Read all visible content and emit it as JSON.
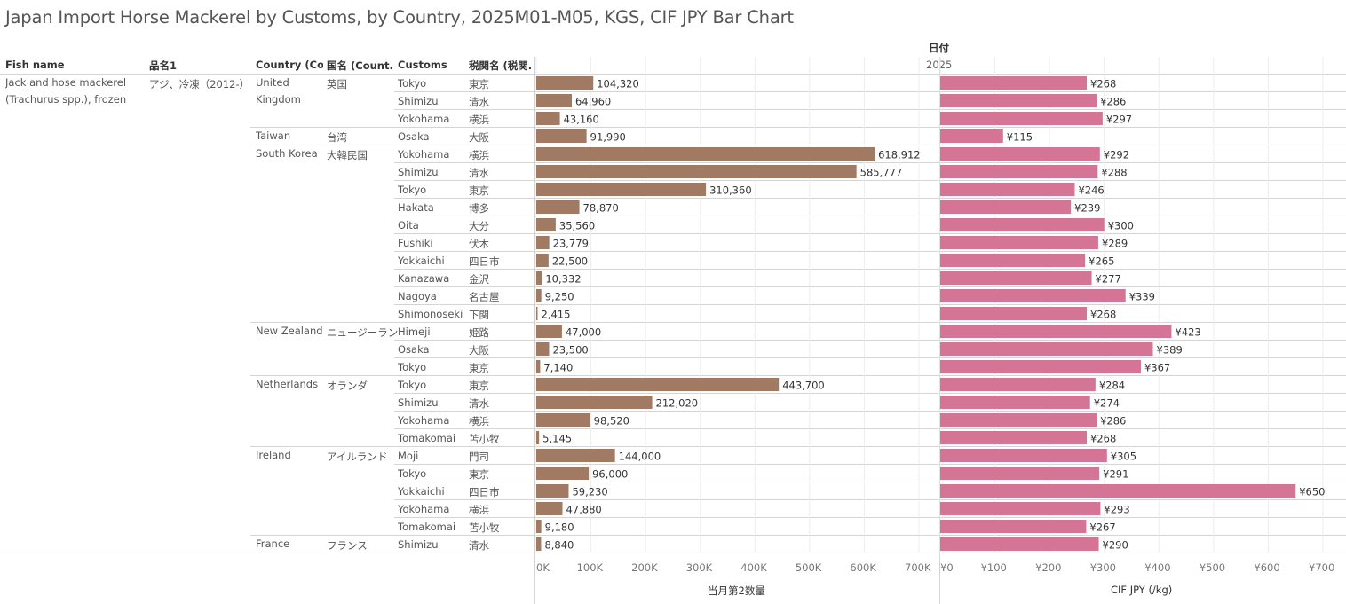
{
  "title": "Japan Import Horse Mackerel by Customs, by Country, 2025M01-M05, KGS, CIF JPY Bar Chart",
  "headers": {
    "fish_name": "Fish name",
    "hinmei": "品名1",
    "country": "Country (Co..",
    "kokumei": "国名 (Count..",
    "customs": "Customs",
    "zeikan": "税関名 (税関..",
    "date": "日付",
    "year": "2025"
  },
  "fish": {
    "name": "Jack and hose mackerel (Trachurus spp.), frozen",
    "hinmei": "アジ、冷凍（2012-）"
  },
  "groups": [
    {
      "country": "United Kingdom",
      "kokumei": "英国",
      "rows": 3
    },
    {
      "country": "Taiwan",
      "kokumei": "台湾",
      "rows": 1
    },
    {
      "country": "South Korea",
      "kokumei": "大韓民国",
      "rows": 10
    },
    {
      "country": "New Zealand",
      "kokumei": "ニュージーランド",
      "rows": 3
    },
    {
      "country": "Netherlands",
      "kokumei": "オランダ",
      "rows": 4
    },
    {
      "country": "Ireland",
      "kokumei": "アイルランド",
      "rows": 5
    },
    {
      "country": "France",
      "kokumei": "フランス",
      "rows": 1
    }
  ],
  "rows": [
    {
      "customs": "Tokyo",
      "zeikan": "東京"
    },
    {
      "customs": "Shimizu",
      "zeikan": "清水"
    },
    {
      "customs": "Yokohama",
      "zeikan": "横浜"
    },
    {
      "customs": "Osaka",
      "zeikan": "大阪"
    },
    {
      "customs": "Yokohama",
      "zeikan": "横浜"
    },
    {
      "customs": "Shimizu",
      "zeikan": "清水"
    },
    {
      "customs": "Tokyo",
      "zeikan": "東京"
    },
    {
      "customs": "Hakata",
      "zeikan": "博多"
    },
    {
      "customs": "Oita",
      "zeikan": "大分"
    },
    {
      "customs": "Fushiki",
      "zeikan": "伏木"
    },
    {
      "customs": "Yokkaichi",
      "zeikan": "四日市"
    },
    {
      "customs": "Kanazawa",
      "zeikan": "金沢"
    },
    {
      "customs": "Nagoya",
      "zeikan": "名古屋"
    },
    {
      "customs": "Shimonoseki",
      "zeikan": "下関"
    },
    {
      "customs": "Himeji",
      "zeikan": "姫路"
    },
    {
      "customs": "Osaka",
      "zeikan": "大阪"
    },
    {
      "customs": "Tokyo",
      "zeikan": "東京"
    },
    {
      "customs": "Tokyo",
      "zeikan": "東京"
    },
    {
      "customs": "Shimizu",
      "zeikan": "清水"
    },
    {
      "customs": "Yokohama",
      "zeikan": "横浜"
    },
    {
      "customs": "Tomakomai",
      "zeikan": "苫小牧"
    },
    {
      "customs": "Moji",
      "zeikan": "門司"
    },
    {
      "customs": "Tokyo",
      "zeikan": "東京"
    },
    {
      "customs": "Yokkaichi",
      "zeikan": "四日市"
    },
    {
      "customs": "Yokohama",
      "zeikan": "横浜"
    },
    {
      "customs": "Tomakomai",
      "zeikan": "苫小牧"
    },
    {
      "customs": "Shimizu",
      "zeikan": "清水"
    }
  ],
  "chart_data": [
    {
      "type": "bar",
      "orientation": "horizontal",
      "xlabel": "当月第2数量",
      "xlim": [
        0,
        700000
      ],
      "ticks": [
        0,
        100000,
        200000,
        300000,
        400000,
        500000,
        600000,
        700000
      ],
      "tick_labels": [
        "0K",
        "100K",
        "200K",
        "300K",
        "400K",
        "500K",
        "600K",
        "700K"
      ],
      "color": "#a07a62",
      "values": [
        104320,
        64960,
        43160,
        91990,
        618912,
        585777,
        310360,
        78870,
        35560,
        23779,
        22500,
        10332,
        9250,
        2415,
        47000,
        23500,
        7140,
        443700,
        212020,
        98520,
        5145,
        144000,
        96000,
        59230,
        47880,
        9180,
        8840
      ],
      "value_labels": [
        "104,320",
        "64,960",
        "43,160",
        "91,990",
        "618,912",
        "585,777",
        "310,360",
        "78,870",
        "35,560",
        "23,779",
        "22,500",
        "10,332",
        "9,250",
        "2,415",
        "47,000",
        "23,500",
        "7,140",
        "443,700",
        "212,020",
        "98,520",
        "5,145",
        "144,000",
        "96,000",
        "59,230",
        "47,880",
        "9,180",
        "8,840"
      ]
    },
    {
      "type": "bar",
      "orientation": "horizontal",
      "xlabel": "CIF JPY (/kg)",
      "xlim": [
        0,
        700
      ],
      "ticks": [
        0,
        100,
        200,
        300,
        400,
        500,
        600,
        700
      ],
      "tick_labels": [
        "¥0",
        "¥100",
        "¥200",
        "¥300",
        "¥400",
        "¥500",
        "¥600",
        "¥700"
      ],
      "color": "#d47595",
      "values": [
        268,
        286,
        297,
        115,
        292,
        288,
        246,
        239,
        300,
        289,
        265,
        277,
        339,
        268,
        423,
        389,
        367,
        284,
        274,
        286,
        268,
        305,
        291,
        650,
        293,
        267,
        290
      ],
      "value_labels": [
        "¥268",
        "¥286",
        "¥297",
        "¥115",
        "¥292",
        "¥288",
        "¥246",
        "¥239",
        "¥300",
        "¥289",
        "¥265",
        "¥277",
        "¥339",
        "¥268",
        "¥423",
        "¥389",
        "¥367",
        "¥284",
        "¥274",
        "¥286",
        "¥268",
        "¥305",
        "¥291",
        "¥650",
        "¥293",
        "¥267",
        "¥290"
      ]
    }
  ]
}
